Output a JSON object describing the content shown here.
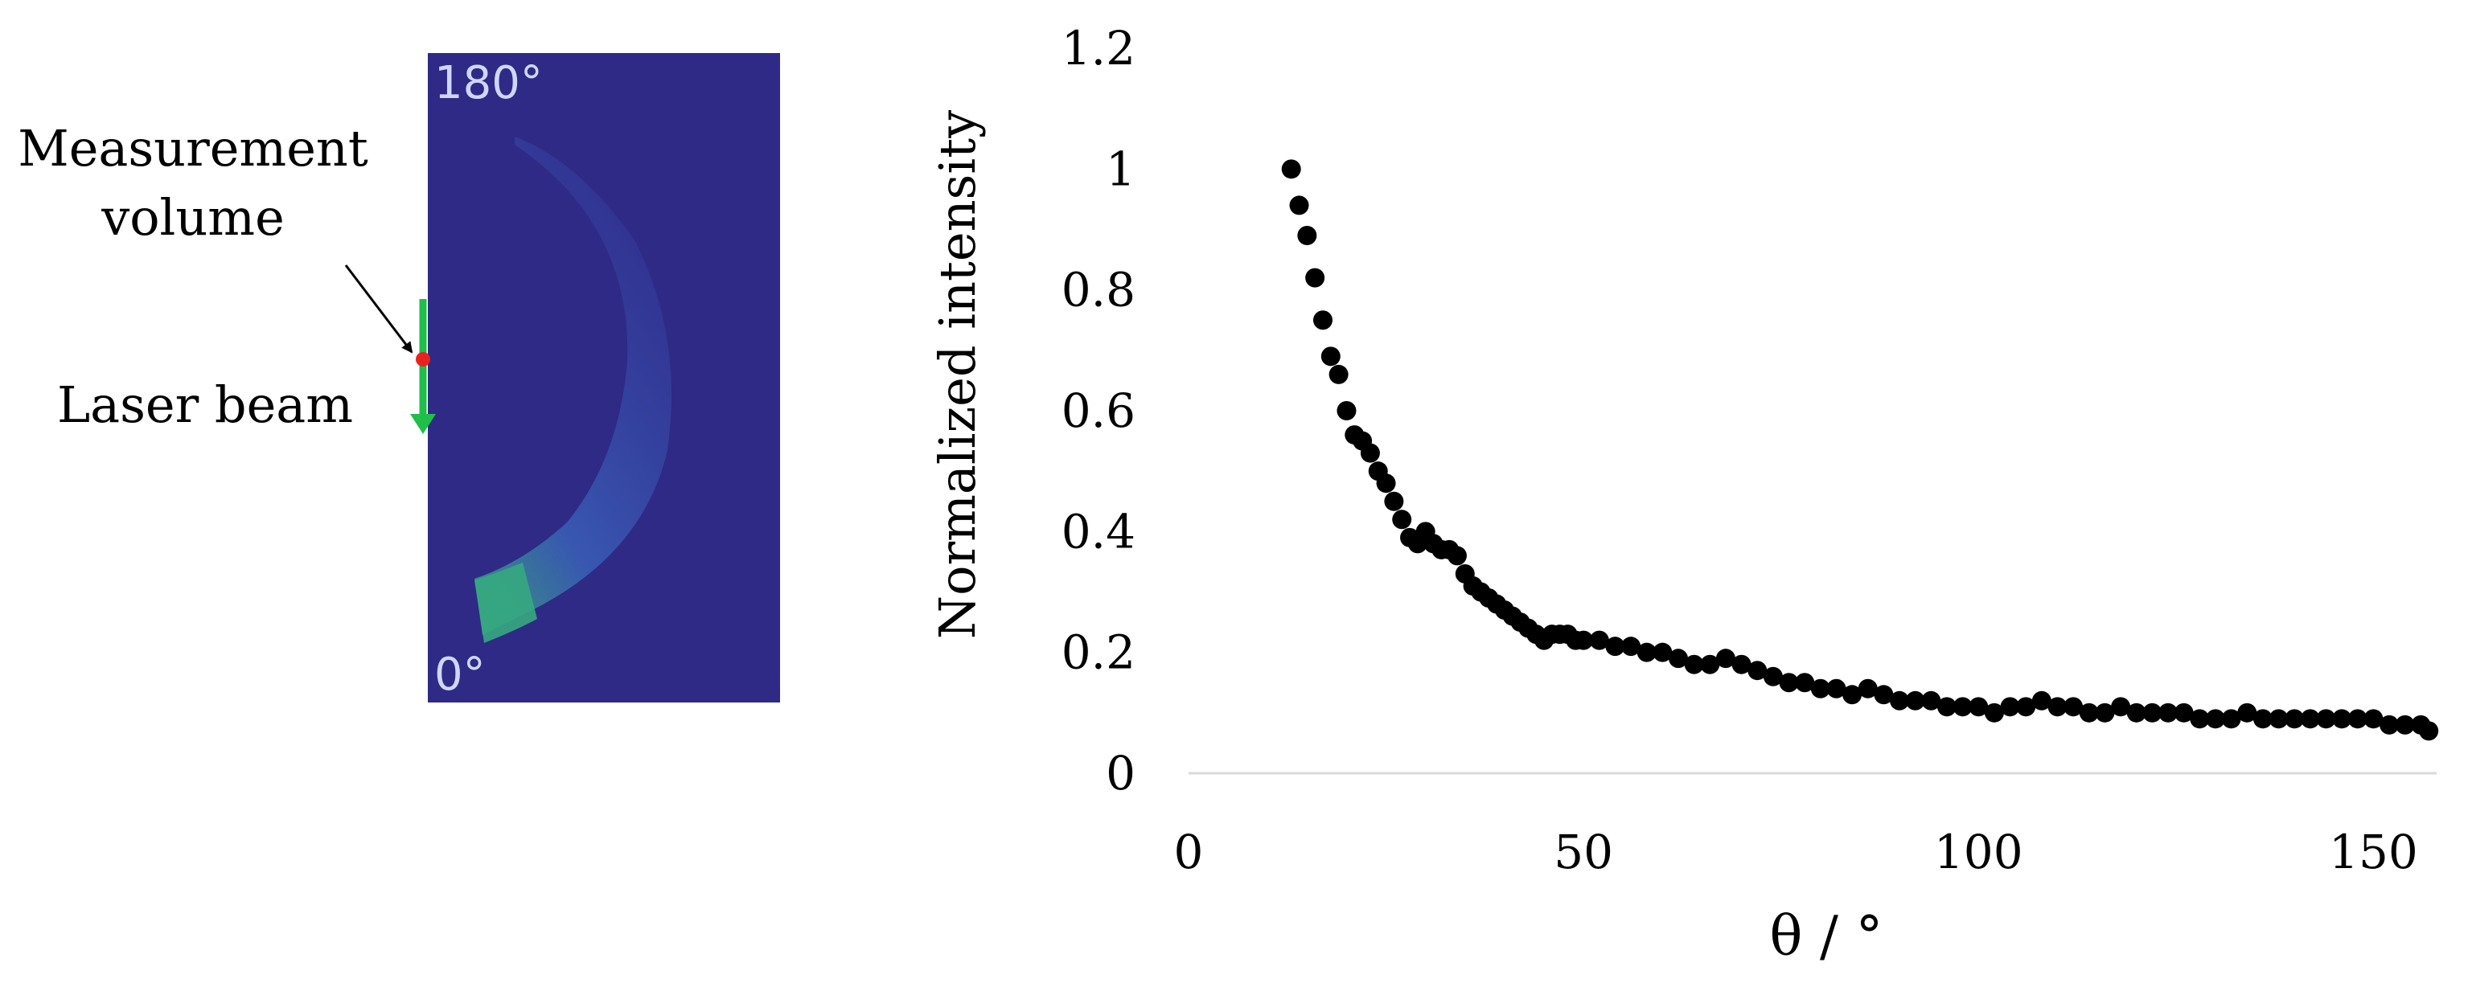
{
  "left_panel": {
    "angle_top": "180°",
    "angle_bottom": "0°",
    "measurement_label_line1": "Measurement",
    "measurement_label_line2": "volume",
    "laser_label": "Laser beam",
    "colors": {
      "background": "#2e2a86",
      "beam": "#1fbf4a",
      "measurement_point": "#e8231f",
      "scatter_low": "#3a4fb0",
      "scatter_high": "#2fb87a"
    }
  },
  "chart_data": {
    "type": "scatter",
    "title": "",
    "xlabel": "θ / °",
    "ylabel": "Normalized intensity",
    "xlim": [
      0,
      158
    ],
    "ylim": [
      0,
      1.2
    ],
    "xticks": [
      "0",
      "50",
      "100",
      "150"
    ],
    "yticks": [
      "0",
      "0.2",
      "0.4",
      "0.6",
      "0.8",
      "1",
      "1.2"
    ],
    "grid": false,
    "marker_color": "#000000",
    "series": [
      {
        "x": [
          13,
          14,
          15,
          16,
          17,
          18,
          19,
          20,
          21,
          22,
          23,
          24,
          25,
          26,
          27,
          28,
          29,
          30,
          31,
          32,
          33,
          34,
          35,
          36,
          37,
          38,
          39,
          40,
          41,
          42,
          43,
          44,
          45,
          46,
          47,
          48,
          49,
          50,
          52,
          54,
          56,
          58,
          60,
          62,
          64,
          66,
          68,
          70,
          72,
          74,
          76,
          78,
          80,
          82,
          84,
          86,
          88,
          90,
          92,
          94,
          96,
          98,
          100,
          102,
          104,
          106,
          108,
          110,
          112,
          114,
          116,
          118,
          120,
          122,
          124,
          126,
          128,
          130,
          132,
          134,
          136,
          138,
          140,
          142,
          144,
          146,
          148,
          150,
          152,
          154,
          156,
          157
        ],
        "y": [
          1.0,
          0.94,
          0.89,
          0.82,
          0.75,
          0.69,
          0.66,
          0.6,
          0.56,
          0.55,
          0.53,
          0.5,
          0.48,
          0.45,
          0.42,
          0.39,
          0.38,
          0.4,
          0.38,
          0.37,
          0.37,
          0.36,
          0.33,
          0.31,
          0.3,
          0.29,
          0.28,
          0.27,
          0.26,
          0.25,
          0.24,
          0.23,
          0.22,
          0.23,
          0.23,
          0.23,
          0.22,
          0.22,
          0.22,
          0.21,
          0.21,
          0.2,
          0.2,
          0.19,
          0.18,
          0.18,
          0.19,
          0.18,
          0.17,
          0.16,
          0.15,
          0.15,
          0.14,
          0.14,
          0.13,
          0.14,
          0.13,
          0.12,
          0.12,
          0.12,
          0.11,
          0.11,
          0.11,
          0.1,
          0.11,
          0.11,
          0.12,
          0.11,
          0.11,
          0.1,
          0.1,
          0.11,
          0.1,
          0.1,
          0.1,
          0.1,
          0.09,
          0.09,
          0.09,
          0.1,
          0.09,
          0.09,
          0.09,
          0.09,
          0.09,
          0.09,
          0.09,
          0.09,
          0.08,
          0.08,
          0.08,
          0.07
        ]
      }
    ]
  }
}
